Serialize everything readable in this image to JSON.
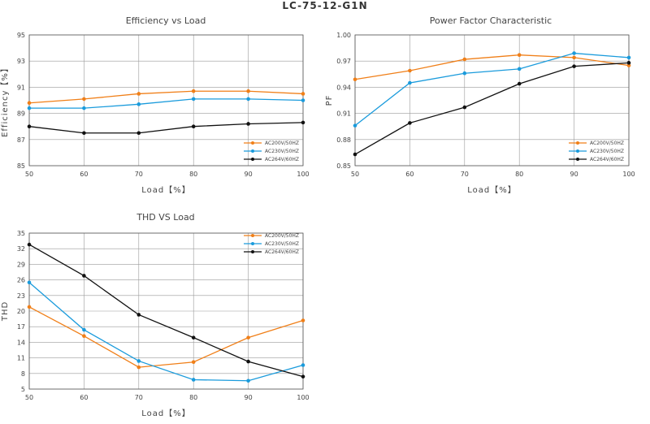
{
  "page_title": "LC-75-12-G1N",
  "chart_data": [
    {
      "id": "efficiency",
      "type": "line",
      "title": "Efficiency vs Load",
      "xlabel": "Load【%】",
      "ylabel": "Efficiency【%】",
      "x": [
        50,
        60,
        70,
        80,
        90,
        100
      ],
      "xlim": [
        50,
        100
      ],
      "ylim": [
        85,
        95
      ],
      "yticks": [
        "85",
        "87",
        "89",
        "91",
        "93",
        "95"
      ],
      "grid": true,
      "legend": "bottom-right",
      "series": [
        {
          "name": "AC200V/50HZ",
          "color": "#F07F18",
          "values": [
            89.8,
            90.1,
            90.5,
            90.7,
            90.7,
            90.5
          ]
        },
        {
          "name": "AC230V/50HZ",
          "color": "#1A9BDC",
          "values": [
            89.4,
            89.4,
            89.7,
            90.1,
            90.1,
            90.0
          ]
        },
        {
          "name": "AC264V/60HZ",
          "color": "#111111",
          "values": [
            88.0,
            87.5,
            87.5,
            88.0,
            88.2,
            88.3
          ]
        }
      ]
    },
    {
      "id": "power-factor",
      "type": "line",
      "title": "Power Factor Characteristic",
      "xlabel": "Load【%】",
      "ylabel": "PF",
      "x": [
        50,
        60,
        70,
        80,
        90,
        100
      ],
      "xlim": [
        50,
        100
      ],
      "ylim": [
        0.85,
        1.0
      ],
      "yticks": [
        "0.85",
        "0.88",
        "0.91",
        "0.94",
        "0.97",
        "1.00"
      ],
      "grid": true,
      "legend": "bottom-right",
      "series": [
        {
          "name": "AC200V/50HZ",
          "color": "#F07F18",
          "values": [
            0.949,
            0.959,
            0.972,
            0.977,
            0.974,
            0.965
          ]
        },
        {
          "name": "AC230V/50HZ",
          "color": "#1A9BDC",
          "values": [
            0.896,
            0.945,
            0.956,
            0.961,
            0.979,
            0.974
          ]
        },
        {
          "name": "AC264V/60HZ",
          "color": "#111111",
          "values": [
            0.863,
            0.899,
            0.917,
            0.944,
            0.964,
            0.968
          ]
        }
      ]
    },
    {
      "id": "thd",
      "type": "line",
      "title": "THD VS Load",
      "xlabel": "Load【%】",
      "ylabel": "THD",
      "x": [
        50,
        60,
        70,
        80,
        90,
        100
      ],
      "xlim": [
        50,
        100
      ],
      "ylim": [
        5,
        35
      ],
      "yticks": [
        "5",
        "8",
        "11",
        "14",
        "17",
        "20",
        "23",
        "26",
        "29",
        "32",
        "35"
      ],
      "grid": true,
      "legend": "top-right",
      "series": [
        {
          "name": "AC200V/50HZ",
          "color": "#F07F18",
          "values": [
            20.8,
            15.2,
            9.2,
            10.2,
            14.9,
            18.2
          ]
        },
        {
          "name": "AC230V/50HZ",
          "color": "#1A9BDC",
          "values": [
            25.5,
            16.4,
            10.4,
            6.8,
            6.6,
            9.6
          ]
        },
        {
          "name": "AC264V/60HZ",
          "color": "#111111",
          "values": [
            32.8,
            26.8,
            19.3,
            14.9,
            10.3,
            7.4
          ]
        }
      ]
    }
  ]
}
